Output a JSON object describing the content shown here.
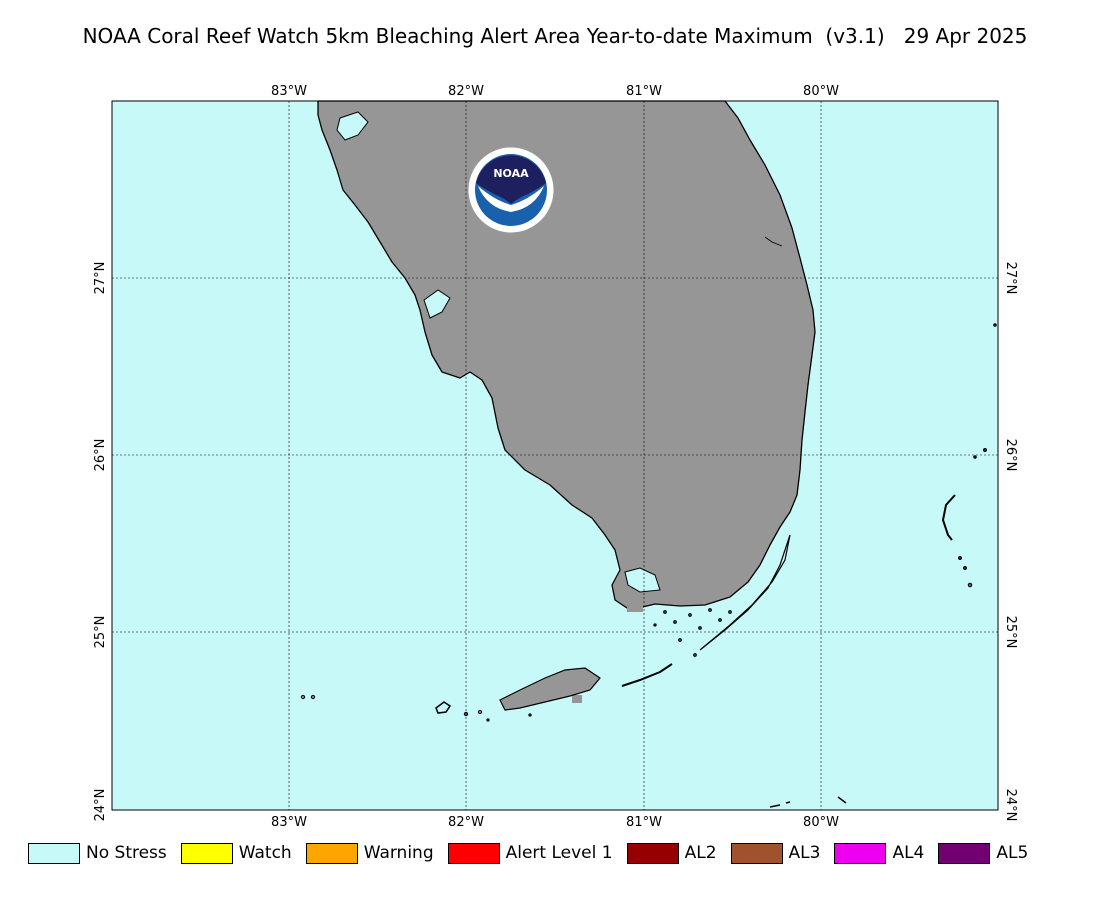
{
  "title": "NOAA Coral Reef Watch 5km Bleaching Alert Area Year-to-date Maximum  (v3.1)   29 Apr 2025",
  "colors": {
    "ocean": "#c8f9f9",
    "land": "#969696",
    "noaa_blue": "#1a61ad",
    "noaa_navy": "#1d1f5e"
  },
  "logo": {
    "text": "NOAA"
  },
  "axes": {
    "lon_labels": [
      "83°W",
      "82°W",
      "81°W",
      "80°W"
    ],
    "lat_labels": [
      "27°N",
      "26°N",
      "25°N",
      "24°N"
    ]
  },
  "legend": [
    {
      "label": "No Stress",
      "color": "#c8f9f9"
    },
    {
      "label": "Watch",
      "color": "#ffff00"
    },
    {
      "label": "Warning",
      "color": "#ffa500"
    },
    {
      "label": "Alert Level 1",
      "color": "#ff0000"
    },
    {
      "label": "AL2",
      "color": "#960000"
    },
    {
      "label": "AL3",
      "color": "#a0522d"
    },
    {
      "label": "AL4",
      "color": "#ee00ee"
    },
    {
      "label": "AL5",
      "color": "#730073"
    }
  ]
}
